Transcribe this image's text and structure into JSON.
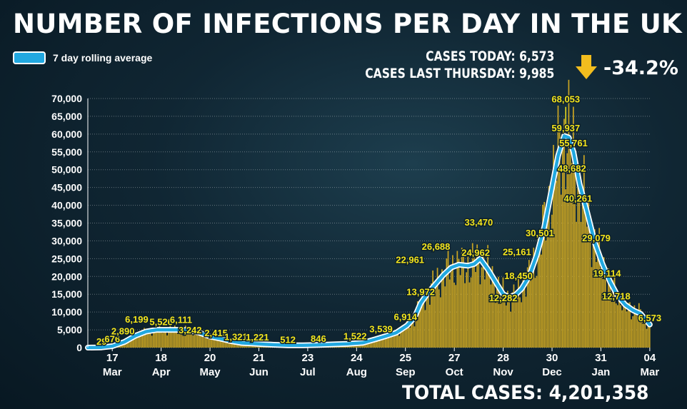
{
  "header": {
    "title": "NUMBER OF INFECTIONS PER DAY IN THE UK",
    "cases_today": "CASES TODAY: 6,573",
    "cases_last_thursday": "CASES LAST THURSDAY: 9,985",
    "change": "-34.2%",
    "change_icon": "down-arrow-icon",
    "total_cases": "TOTAL CASES: 4,201,358"
  },
  "colors": {
    "bars": "#c9a422",
    "line": "#21a8e0",
    "labels": "#f4e51c",
    "arrow": "#f2bd1e"
  },
  "chart_data": {
    "type": "bar",
    "legend": [
      "7 day rolling average"
    ],
    "ylim": [
      0,
      70000
    ],
    "yticks": [
      0,
      5000,
      10000,
      15000,
      20000,
      25000,
      30000,
      35000,
      40000,
      45000,
      50000,
      55000,
      60000,
      65000,
      70000
    ],
    "ytick_labels": [
      "0",
      "5,000",
      "10,000",
      "15,000",
      "20,000",
      "25,000",
      "30,000",
      "35,000",
      "40,000",
      "45,000",
      "50,000",
      "55,000",
      "60,000",
      "65,000",
      "70,000"
    ],
    "xlim": [
      "2020-03-01",
      "2021-03-05"
    ],
    "xticks": [
      {
        "date": "2020-03-17",
        "day": "17",
        "month": "Mar"
      },
      {
        "date": "2020-04-18",
        "day": "18",
        "month": "Apr"
      },
      {
        "date": "2020-05-20",
        "day": "20",
        "month": "May"
      },
      {
        "date": "2020-06-21",
        "day": "21",
        "month": "Jun"
      },
      {
        "date": "2020-07-23",
        "day": "23",
        "month": "Jul"
      },
      {
        "date": "2020-08-24",
        "day": "24",
        "month": "Aug"
      },
      {
        "date": "2020-09-25",
        "day": "25",
        "month": "Sep"
      },
      {
        "date": "2020-10-27",
        "day": "27",
        "month": "Oct"
      },
      {
        "date": "2020-11-28",
        "day": "28",
        "month": "Nov"
      },
      {
        "date": "2020-12-30",
        "day": "30",
        "month": "Dec"
      },
      {
        "date": "2021-01-31",
        "day": "31",
        "month": "Jan"
      },
      {
        "date": "2021-03-04",
        "day": "04",
        "month": "Mar"
      }
    ],
    "rolling_average": {
      "name": "7 day rolling average",
      "points": [
        [
          "2020-03-01",
          0
        ],
        [
          "2020-03-10",
          60
        ],
        [
          "2020-03-17",
          400
        ],
        [
          "2020-03-25",
          1600
        ],
        [
          "2020-04-01",
          3300
        ],
        [
          "2020-04-08",
          4500
        ],
        [
          "2020-04-15",
          5000
        ],
        [
          "2020-04-22",
          5000
        ],
        [
          "2020-04-29",
          5000
        ],
        [
          "2020-05-06",
          4900
        ],
        [
          "2020-05-13",
          4200
        ],
        [
          "2020-05-20",
          3100
        ],
        [
          "2020-05-27",
          2500
        ],
        [
          "2020-06-03",
          1800
        ],
        [
          "2020-06-10",
          1300
        ],
        [
          "2020-06-17",
          1150
        ],
        [
          "2020-06-24",
          950
        ],
        [
          "2020-07-01",
          800
        ],
        [
          "2020-07-10",
          650
        ],
        [
          "2020-07-20",
          650
        ],
        [
          "2020-07-30",
          750
        ],
        [
          "2020-08-08",
          900
        ],
        [
          "2020-08-18",
          1050
        ],
        [
          "2020-08-28",
          1350
        ],
        [
          "2020-09-05",
          2300
        ],
        [
          "2020-09-12",
          3200
        ],
        [
          "2020-09-19",
          4200
        ],
        [
          "2020-09-26",
          6200
        ],
        [
          "2020-10-01",
          8500
        ],
        [
          "2020-10-05",
          12500
        ],
        [
          "2020-10-10",
          15500
        ],
        [
          "2020-10-15",
          18000
        ],
        [
          "2020-10-20",
          20500
        ],
        [
          "2020-10-25",
          22500
        ],
        [
          "2020-10-30",
          23300
        ],
        [
          "2020-11-05",
          23000
        ],
        [
          "2020-11-09",
          23500
        ],
        [
          "2020-11-13",
          25000
        ],
        [
          "2020-11-18",
          22000
        ],
        [
          "2020-11-23",
          18500
        ],
        [
          "2020-11-28",
          15000
        ],
        [
          "2020-12-02",
          14200
        ],
        [
          "2020-12-06",
          14800
        ],
        [
          "2020-12-10",
          16500
        ],
        [
          "2020-12-15",
          20000
        ],
        [
          "2020-12-20",
          26000
        ],
        [
          "2020-12-25",
          34000
        ],
        [
          "2020-12-30",
          45000
        ],
        [
          "2021-01-03",
          54000
        ],
        [
          "2021-01-07",
          59500
        ],
        [
          "2021-01-10",
          59000
        ],
        [
          "2021-01-13",
          55000
        ],
        [
          "2021-01-17",
          46000
        ],
        [
          "2021-01-22",
          38000
        ],
        [
          "2021-01-27",
          29500
        ],
        [
          "2021-02-01",
          23500
        ],
        [
          "2021-02-06",
          18500
        ],
        [
          "2021-02-11",
          14500
        ],
        [
          "2021-02-16",
          12000
        ],
        [
          "2021-02-21",
          10500
        ],
        [
          "2021-02-26",
          9500
        ],
        [
          "2021-03-02",
          7500
        ],
        [
          "2021-03-04",
          6500
        ]
      ]
    },
    "annotations": [
      {
        "date": "2020-03-10",
        "value": 29,
        "label": "29"
      },
      {
        "date": "2020-03-17",
        "value": 676,
        "label": "676"
      },
      {
        "date": "2020-03-24",
        "value": 2890,
        "label": "2,890"
      },
      {
        "date": "2020-04-02",
        "value": 6199,
        "label": "6,199"
      },
      {
        "date": "2020-04-18",
        "value": 5526,
        "label": "5,526"
      },
      {
        "date": "2020-05-01",
        "value": 6111,
        "label": "6,111"
      },
      {
        "date": "2020-05-07",
        "value": 3242,
        "label": "3,242"
      },
      {
        "date": "2020-05-24",
        "value": 2415,
        "label": "2,415"
      },
      {
        "date": "2020-06-06",
        "value": 1321,
        "label": "1,321"
      },
      {
        "date": "2020-06-20",
        "value": 1221,
        "label": "1,221"
      },
      {
        "date": "2020-07-10",
        "value": 512,
        "label": "512"
      },
      {
        "date": "2020-07-30",
        "value": 846,
        "label": "846"
      },
      {
        "date": "2020-08-23",
        "value": 1522,
        "label": "1,522"
      },
      {
        "date": "2020-09-09",
        "value": 3539,
        "label": "3,539"
      },
      {
        "date": "2020-09-25",
        "value": 6914,
        "label": "6,914"
      },
      {
        "date": "2020-10-05",
        "value": 13972,
        "label": "13,972"
      },
      {
        "date": "2020-09-28",
        "value": 22961,
        "label": "22,961"
      },
      {
        "date": "2020-10-15",
        "value": 26688,
        "label": "26,688"
      },
      {
        "date": "2020-11-12",
        "value": 33470,
        "label": "33,470"
      },
      {
        "date": "2020-11-10",
        "value": 24962,
        "label": "24,962"
      },
      {
        "date": "2020-11-28",
        "value": 12282,
        "label": "12,282"
      },
      {
        "date": "2020-12-08",
        "value": 18450,
        "label": "18,450"
      },
      {
        "date": "2020-12-07",
        "value": 25161,
        "label": "25,161"
      },
      {
        "date": "2020-12-22",
        "value": 30501,
        "label": "30,501"
      },
      {
        "date": "2021-01-08",
        "value": 68053,
        "label": "68,053"
      },
      {
        "date": "2021-01-08",
        "value": 59937,
        "label": "59,937"
      },
      {
        "date": "2021-01-13",
        "value": 55761,
        "label": "55,761"
      },
      {
        "date": "2021-01-12",
        "value": 48682,
        "label": "48,682"
      },
      {
        "date": "2021-01-16",
        "value": 40261,
        "label": "40,261"
      },
      {
        "date": "2021-01-28",
        "value": 29079,
        "label": "29,079"
      },
      {
        "date": "2021-02-04",
        "value": 19114,
        "label": "19,114"
      },
      {
        "date": "2021-02-10",
        "value": 12718,
        "label": "12,718"
      },
      {
        "date": "2021-03-04",
        "value": 6573,
        "label": "6,573"
      }
    ]
  }
}
